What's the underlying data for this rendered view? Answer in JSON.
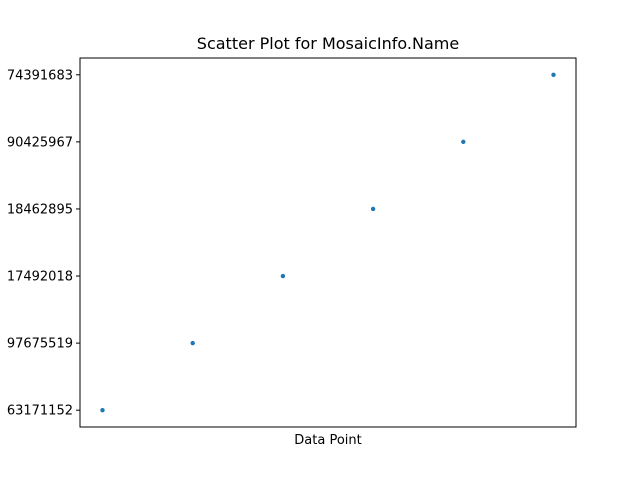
{
  "chart_data": {
    "type": "scatter",
    "title": "Scatter Plot for MosaicInfo.Name",
    "xlabel": "Data Point",
    "ylabel": "",
    "x_ticks_shown": false,
    "grid": false,
    "y_categories": [
      "63171152",
      "97675519",
      "17492018",
      "18462895",
      "90425967",
      "74391683"
    ],
    "series": [
      {
        "color": "#1f77b4",
        "points": [
          {
            "x": 0,
            "y": "63171152"
          },
          {
            "x": 1,
            "y": "97675519"
          },
          {
            "x": 2,
            "y": "17492018"
          },
          {
            "x": 3,
            "y": "18462895"
          },
          {
            "x": 4,
            "y": "90425967"
          },
          {
            "x": 5,
            "y": "74391683"
          }
        ]
      }
    ]
  }
}
